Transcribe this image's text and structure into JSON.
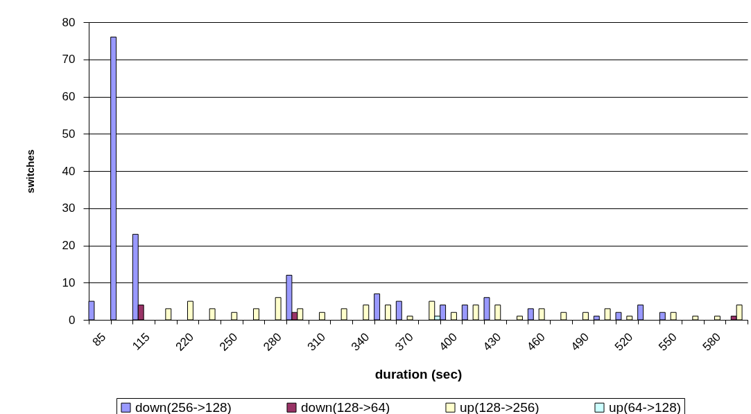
{
  "chart_data": {
    "type": "bar",
    "xlabel": "duration (sec)",
    "ylabel": "switches",
    "categories": [
      "85",
      null,
      "115",
      null,
      "220",
      null,
      "250",
      null,
      "280",
      null,
      "310",
      null,
      "340",
      null,
      "370",
      null,
      "400",
      null,
      "430",
      null,
      "460",
      null,
      "490",
      null,
      "520",
      null,
      "550",
      null,
      "580",
      null
    ],
    "series": [
      {
        "name": "down(256->128)",
        "color": "#9999ff",
        "values": [
          5,
          76,
          23,
          null,
          null,
          null,
          null,
          null,
          null,
          12,
          null,
          null,
          null,
          7,
          5,
          null,
          4,
          4,
          6,
          null,
          3,
          null,
          null,
          1,
          2,
          4,
          2,
          null,
          null,
          null
        ]
      },
      {
        "name": "down(128->64)",
        "color": "#993366",
        "values": [
          null,
          null,
          4,
          null,
          null,
          null,
          null,
          null,
          null,
          2,
          null,
          null,
          null,
          null,
          null,
          null,
          null,
          null,
          null,
          null,
          null,
          null,
          null,
          null,
          null,
          null,
          null,
          null,
          null,
          1
        ]
      },
      {
        "name": "up(128->256)",
        "color": "#ffffcc",
        "values": [
          null,
          null,
          null,
          3,
          5,
          3,
          2,
          3,
          6,
          3,
          2,
          3,
          4,
          4,
          1,
          5,
          2,
          4,
          4,
          1,
          3,
          2,
          2,
          3,
          1,
          null,
          2,
          1,
          1,
          4
        ]
      },
      {
        "name": "up(64->128)",
        "color": "#ccffff",
        "values": [
          null,
          null,
          null,
          null,
          null,
          null,
          null,
          null,
          null,
          null,
          null,
          null,
          null,
          null,
          null,
          1,
          null,
          null,
          null,
          null,
          null,
          null,
          null,
          null,
          null,
          null,
          null,
          null,
          null,
          null
        ]
      }
    ],
    "ylim": [
      0,
      80
    ],
    "yticks": [
      0,
      10,
      20,
      30,
      40,
      50,
      60,
      70,
      80
    ],
    "grid": "y",
    "legend": "bottom"
  }
}
